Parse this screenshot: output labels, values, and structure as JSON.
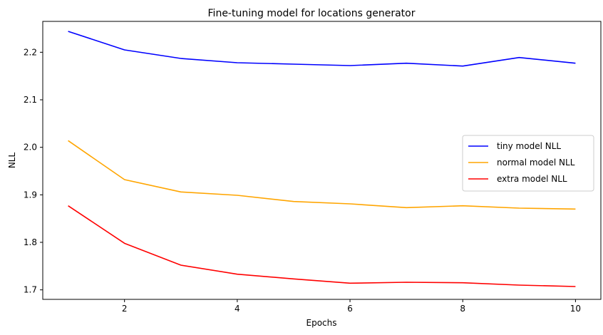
{
  "chart_data": {
    "type": "line",
    "title": "Fine-tuning model for locations generator",
    "xlabel": "Epochs",
    "ylabel": "NLL",
    "xlim": [
      0.55,
      10.45
    ],
    "ylim": [
      1.68,
      2.265
    ],
    "xticks": [
      2,
      4,
      6,
      8,
      10
    ],
    "yticks": [
      1.7,
      1.8,
      1.9,
      2.0,
      2.1,
      2.2
    ],
    "ytick_labels": [
      "1.7",
      "1.8",
      "1.9",
      "2.0",
      "2.1",
      "2.2"
    ],
    "grid": false,
    "legend_position": "center-right",
    "x": [
      1,
      2,
      3,
      4,
      5,
      6,
      7,
      8,
      9,
      10
    ],
    "series": [
      {
        "name": "tiny model NLL",
        "color": "#0000ff",
        "values": [
          2.244,
          2.205,
          2.187,
          2.178,
          2.175,
          2.172,
          2.177,
          2.171,
          2.189,
          2.177
        ]
      },
      {
        "name": "normal model NLL",
        "color": "#ffa500",
        "values": [
          2.014,
          1.932,
          1.906,
          1.899,
          1.886,
          1.881,
          1.873,
          1.877,
          1.872,
          1.87
        ]
      },
      {
        "name": "extra model NLL",
        "color": "#ff0000",
        "values": [
          1.877,
          1.798,
          1.752,
          1.733,
          1.723,
          1.714,
          1.716,
          1.715,
          1.71,
          1.707
        ]
      }
    ]
  }
}
